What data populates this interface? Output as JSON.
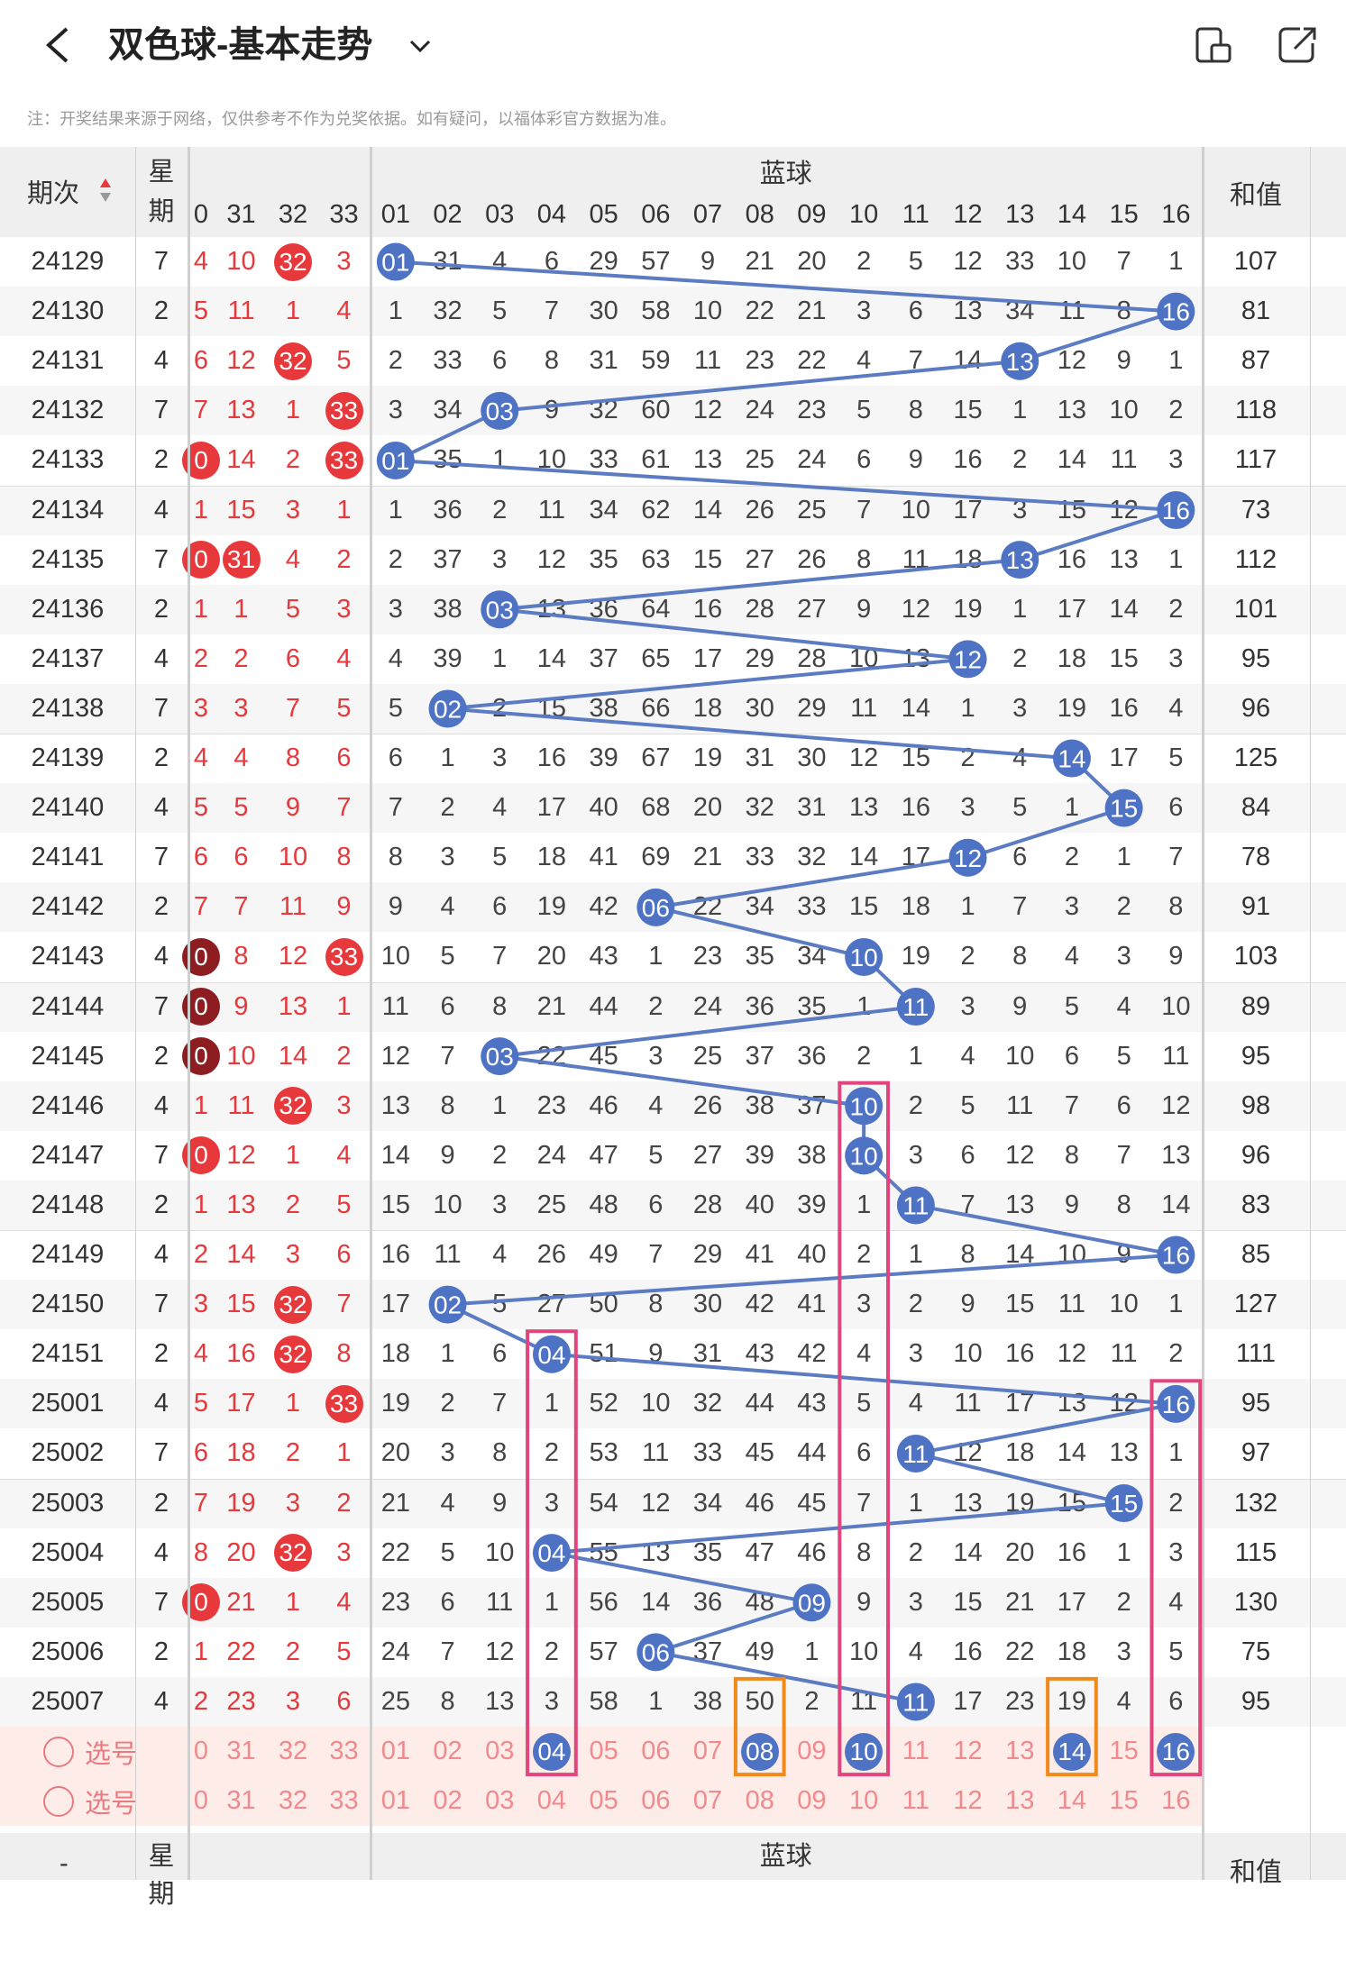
{
  "header": {
    "title": "双色球-基本走势",
    "back_icon": "chevron-left-icon",
    "dropdown_icon": "chevron-down-icon",
    "device_icon": "phone-landscape-icon",
    "share_icon": "share-icon"
  },
  "notice": "注：开奖结果来源于网络，仅供参考不作为兑奖依据。如有疑问，以福体彩官方数据为准。",
  "table": {
    "period_header": "期次",
    "weekday_header": "星期",
    "blue_header": "蓝球",
    "sum_header": "和值",
    "red_cols": [
      "0",
      "31",
      "32",
      "33"
    ],
    "blue_cols": [
      "01",
      "02",
      "03",
      "04",
      "05",
      "06",
      "07",
      "08",
      "09",
      "10",
      "11",
      "12",
      "13",
      "14",
      "15",
      "16"
    ],
    "rows": [
      {
        "p": "24129",
        "w": "7",
        "r": [
          "4",
          "10",
          "32",
          "3"
        ],
        "b": [
          "01",
          "31",
          "4",
          "6",
          "29",
          "57",
          "9",
          "21",
          "20",
          "2",
          "5",
          "12",
          "33",
          "10",
          "7",
          "1"
        ],
        "s": "107",
        "rb": [
          2
        ],
        "bb": 0
      },
      {
        "p": "24130",
        "w": "2",
        "r": [
          "5",
          "11",
          "1",
          "4"
        ],
        "b": [
          "1",
          "32",
          "5",
          "7",
          "30",
          "58",
          "10",
          "22",
          "21",
          "3",
          "6",
          "13",
          "34",
          "11",
          "8",
          "16"
        ],
        "s": "81",
        "rb": [],
        "bb": 15
      },
      {
        "p": "24131",
        "w": "4",
        "r": [
          "6",
          "12",
          "32",
          "5"
        ],
        "b": [
          "2",
          "33",
          "6",
          "8",
          "31",
          "59",
          "11",
          "23",
          "22",
          "4",
          "7",
          "14",
          "13",
          "12",
          "9",
          "1"
        ],
        "s": "87",
        "rb": [
          2
        ],
        "bb": 12
      },
      {
        "p": "24132",
        "w": "7",
        "r": [
          "7",
          "13",
          "1",
          "33"
        ],
        "b": [
          "3",
          "34",
          "03",
          "9",
          "32",
          "60",
          "12",
          "24",
          "23",
          "5",
          "8",
          "15",
          "1",
          "13",
          "10",
          "2"
        ],
        "s": "118",
        "rb": [
          3
        ],
        "bb": 2
      },
      {
        "p": "24133",
        "w": "2",
        "r": [
          "0",
          "14",
          "2",
          "33"
        ],
        "b": [
          "01",
          "35",
          "1",
          "10",
          "33",
          "61",
          "13",
          "25",
          "24",
          "6",
          "9",
          "16",
          "2",
          "14",
          "11",
          "3"
        ],
        "s": "117",
        "rb": [
          0,
          3
        ],
        "bb": 0
      },
      {
        "p": "24134",
        "w": "4",
        "r": [
          "1",
          "15",
          "3",
          "1"
        ],
        "b": [
          "1",
          "36",
          "2",
          "11",
          "34",
          "62",
          "14",
          "26",
          "25",
          "7",
          "10",
          "17",
          "3",
          "15",
          "12",
          "16"
        ],
        "s": "73",
        "rb": [],
        "bb": 15
      },
      {
        "p": "24135",
        "w": "7",
        "r": [
          "0",
          "31",
          "4",
          "2"
        ],
        "b": [
          "2",
          "37",
          "3",
          "12",
          "35",
          "63",
          "15",
          "27",
          "26",
          "8",
          "11",
          "18",
          "13",
          "16",
          "13",
          "1"
        ],
        "s": "112",
        "rb": [
          0,
          1
        ],
        "bb": 12
      },
      {
        "p": "24136",
        "w": "2",
        "r": [
          "1",
          "1",
          "5",
          "3"
        ],
        "b": [
          "3",
          "38",
          "03",
          "13",
          "36",
          "64",
          "16",
          "28",
          "27",
          "9",
          "12",
          "19",
          "1",
          "17",
          "14",
          "2"
        ],
        "s": "101",
        "rb": [],
        "bb": 2
      },
      {
        "p": "24137",
        "w": "4",
        "r": [
          "2",
          "2",
          "6",
          "4"
        ],
        "b": [
          "4",
          "39",
          "1",
          "14",
          "37",
          "65",
          "17",
          "29",
          "28",
          "10",
          "13",
          "12",
          "2",
          "18",
          "15",
          "3"
        ],
        "s": "95",
        "rb": [],
        "bb": 11
      },
      {
        "p": "24138",
        "w": "7",
        "r": [
          "3",
          "3",
          "7",
          "5"
        ],
        "b": [
          "5",
          "02",
          "2",
          "15",
          "38",
          "66",
          "18",
          "30",
          "29",
          "11",
          "14",
          "1",
          "3",
          "19",
          "16",
          "4"
        ],
        "s": "96",
        "rb": [],
        "bb": 1
      },
      {
        "p": "24139",
        "w": "2",
        "r": [
          "4",
          "4",
          "8",
          "6"
        ],
        "b": [
          "6",
          "1",
          "3",
          "16",
          "39",
          "67",
          "19",
          "31",
          "30",
          "12",
          "15",
          "2",
          "4",
          "14",
          "17",
          "5"
        ],
        "s": "125",
        "rb": [],
        "bb": 13
      },
      {
        "p": "24140",
        "w": "4",
        "r": [
          "5",
          "5",
          "9",
          "7"
        ],
        "b": [
          "7",
          "2",
          "4",
          "17",
          "40",
          "68",
          "20",
          "32",
          "31",
          "13",
          "16",
          "3",
          "5",
          "1",
          "15",
          "6"
        ],
        "s": "84",
        "rb": [],
        "bb": 14
      },
      {
        "p": "24141",
        "w": "7",
        "r": [
          "6",
          "6",
          "10",
          "8"
        ],
        "b": [
          "8",
          "3",
          "5",
          "18",
          "41",
          "69",
          "21",
          "33",
          "32",
          "14",
          "17",
          "12",
          "6",
          "2",
          "1",
          "7"
        ],
        "s": "78",
        "rb": [],
        "bb": 11
      },
      {
        "p": "24142",
        "w": "2",
        "r": [
          "7",
          "7",
          "11",
          "9"
        ],
        "b": [
          "9",
          "4",
          "6",
          "19",
          "42",
          "06",
          "22",
          "34",
          "33",
          "15",
          "18",
          "1",
          "7",
          "3",
          "2",
          "8"
        ],
        "s": "91",
        "rb": [],
        "bb": 5
      },
      {
        "p": "24143",
        "w": "4",
        "r": [
          "0",
          "8",
          "12",
          "33"
        ],
        "b": [
          "10",
          "5",
          "7",
          "20",
          "43",
          "1",
          "23",
          "35",
          "34",
          "10",
          "19",
          "2",
          "8",
          "4",
          "3",
          "9"
        ],
        "s": "103",
        "rb": [
          3
        ],
        "bb": 9,
        "dk": true
      },
      {
        "p": "24144",
        "w": "7",
        "r": [
          "0",
          "9",
          "13",
          "1"
        ],
        "b": [
          "11",
          "6",
          "8",
          "21",
          "44",
          "2",
          "24",
          "36",
          "35",
          "1",
          "11",
          "3",
          "9",
          "5",
          "4",
          "10"
        ],
        "s": "89",
        "rb": [],
        "bb": 10,
        "dk": true
      },
      {
        "p": "24145",
        "w": "2",
        "r": [
          "0",
          "10",
          "14",
          "2"
        ],
        "b": [
          "12",
          "7",
          "03",
          "22",
          "45",
          "3",
          "25",
          "37",
          "36",
          "2",
          "1",
          "4",
          "10",
          "6",
          "5",
          "11"
        ],
        "s": "95",
        "rb": [],
        "bb": 2,
        "dk": true
      },
      {
        "p": "24146",
        "w": "4",
        "r": [
          "1",
          "11",
          "32",
          "3"
        ],
        "b": [
          "13",
          "8",
          "1",
          "23",
          "46",
          "4",
          "26",
          "38",
          "37",
          "10",
          "2",
          "5",
          "11",
          "7",
          "6",
          "12"
        ],
        "s": "98",
        "rb": [
          2
        ],
        "bb": 9
      },
      {
        "p": "24147",
        "w": "7",
        "r": [
          "0",
          "12",
          "1",
          "4"
        ],
        "b": [
          "14",
          "9",
          "2",
          "24",
          "47",
          "5",
          "27",
          "39",
          "38",
          "10",
          "3",
          "6",
          "12",
          "8",
          "7",
          "13"
        ],
        "s": "96",
        "rb": [
          0
        ],
        "bb": 9
      },
      {
        "p": "24148",
        "w": "2",
        "r": [
          "1",
          "13",
          "2",
          "5"
        ],
        "b": [
          "15",
          "10",
          "3",
          "25",
          "48",
          "6",
          "28",
          "40",
          "39",
          "1",
          "11",
          "7",
          "13",
          "9",
          "8",
          "14"
        ],
        "s": "83",
        "rb": [],
        "bb": 10
      },
      {
        "p": "24149",
        "w": "4",
        "r": [
          "2",
          "14",
          "3",
          "6"
        ],
        "b": [
          "16",
          "11",
          "4",
          "26",
          "49",
          "7",
          "29",
          "41",
          "40",
          "2",
          "1",
          "8",
          "14",
          "10",
          "9",
          "16"
        ],
        "s": "85",
        "rb": [],
        "bb": 15
      },
      {
        "p": "24150",
        "w": "7",
        "r": [
          "3",
          "15",
          "32",
          "7"
        ],
        "b": [
          "17",
          "02",
          "5",
          "27",
          "50",
          "8",
          "30",
          "42",
          "41",
          "3",
          "2",
          "9",
          "15",
          "11",
          "10",
          "1"
        ],
        "s": "127",
        "rb": [
          2
        ],
        "bb": 1
      },
      {
        "p": "24151",
        "w": "2",
        "r": [
          "4",
          "16",
          "32",
          "8"
        ],
        "b": [
          "18",
          "1",
          "6",
          "04",
          "51",
          "9",
          "31",
          "43",
          "42",
          "4",
          "3",
          "10",
          "16",
          "12",
          "11",
          "2"
        ],
        "s": "111",
        "rb": [
          2
        ],
        "bb": 3
      },
      {
        "p": "25001",
        "w": "4",
        "r": [
          "5",
          "17",
          "1",
          "33"
        ],
        "b": [
          "19",
          "2",
          "7",
          "1",
          "52",
          "10",
          "32",
          "44",
          "43",
          "5",
          "4",
          "11",
          "17",
          "13",
          "12",
          "16"
        ],
        "s": "95",
        "rb": [
          3
        ],
        "bb": 15
      },
      {
        "p": "25002",
        "w": "7",
        "r": [
          "6",
          "18",
          "2",
          "1"
        ],
        "b": [
          "20",
          "3",
          "8",
          "2",
          "53",
          "11",
          "33",
          "45",
          "44",
          "6",
          "11",
          "12",
          "18",
          "14",
          "13",
          "1"
        ],
        "s": "97",
        "rb": [],
        "bb": 10
      },
      {
        "p": "25003",
        "w": "2",
        "r": [
          "7",
          "19",
          "3",
          "2"
        ],
        "b": [
          "21",
          "4",
          "9",
          "3",
          "54",
          "12",
          "34",
          "46",
          "45",
          "7",
          "1",
          "13",
          "19",
          "15",
          "15",
          "2"
        ],
        "s": "132",
        "rb": [],
        "bb": 14
      },
      {
        "p": "25004",
        "w": "4",
        "r": [
          "8",
          "20",
          "32",
          "3"
        ],
        "b": [
          "22",
          "5",
          "10",
          "04",
          "55",
          "13",
          "35",
          "47",
          "46",
          "8",
          "2",
          "14",
          "20",
          "16",
          "1",
          "3"
        ],
        "s": "115",
        "rb": [
          2
        ],
        "bb": 3
      },
      {
        "p": "25005",
        "w": "7",
        "r": [
          "0",
          "21",
          "1",
          "4"
        ],
        "b": [
          "23",
          "6",
          "11",
          "1",
          "56",
          "14",
          "36",
          "48",
          "09",
          "9",
          "3",
          "15",
          "21",
          "17",
          "2",
          "4"
        ],
        "s": "130",
        "rb": [
          0
        ],
        "bb": 8
      },
      {
        "p": "25006",
        "w": "2",
        "r": [
          "1",
          "22",
          "2",
          "5"
        ],
        "b": [
          "24",
          "7",
          "12",
          "2",
          "57",
          "06",
          "37",
          "49",
          "1",
          "10",
          "4",
          "16",
          "22",
          "18",
          "3",
          "5"
        ],
        "s": "75",
        "rb": [],
        "bb": 5
      },
      {
        "p": "25007",
        "w": "4",
        "r": [
          "2",
          "23",
          "3",
          "6"
        ],
        "b": [
          "25",
          "8",
          "13",
          "3",
          "58",
          "1",
          "38",
          "50",
          "2",
          "11",
          "11",
          "17",
          "23",
          "19",
          "4",
          "6"
        ],
        "s": "95",
        "rb": [],
        "bb": 10
      }
    ],
    "pick_label": "选号",
    "pick_selected": [
      "04",
      "08",
      "10",
      "14",
      "16"
    ],
    "footer_dash": "-"
  }
}
